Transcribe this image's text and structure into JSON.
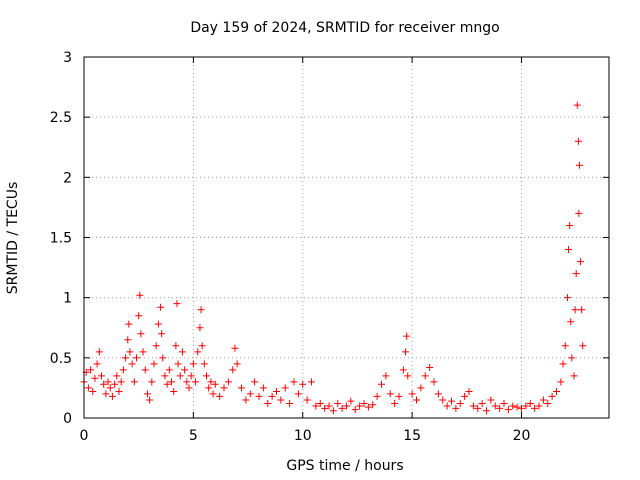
{
  "chart_data": {
    "type": "scatter",
    "title": "Day 159 of 2024, SRMTID for receiver mngo",
    "xlabel": "GPS time / hours",
    "ylabel": "SRMTID / TECUs",
    "xlim": [
      0,
      24
    ],
    "ylim": [
      0,
      3
    ],
    "grid": true,
    "marker": "+",
    "marker_color": "#ff0000",
    "x_ticks": [
      0,
      5,
      10,
      15,
      20
    ],
    "x_tick_labels": [
      "0",
      "5",
      "10",
      "15",
      "20"
    ],
    "y_ticks": [
      0,
      0.5,
      1,
      1.5,
      2,
      2.5,
      3
    ],
    "y_tick_labels": [
      "0",
      "0.5",
      "1",
      "1.5",
      "2",
      "2.5",
      "3"
    ],
    "series": [
      {
        "name": "SRMTID",
        "points": [
          [
            0.0,
            0.3
          ],
          [
            0.1,
            0.38
          ],
          [
            0.2,
            0.25
          ],
          [
            0.3,
            0.4
          ],
          [
            0.4,
            0.22
          ],
          [
            0.5,
            0.33
          ],
          [
            0.6,
            0.45
          ],
          [
            0.7,
            0.55
          ],
          [
            0.8,
            0.35
          ],
          [
            0.9,
            0.28
          ],
          [
            1.0,
            0.2
          ],
          [
            1.1,
            0.3
          ],
          [
            1.2,
            0.25
          ],
          [
            1.3,
            0.18
          ],
          [
            1.4,
            0.28
          ],
          [
            1.5,
            0.35
          ],
          [
            1.6,
            0.22
          ],
          [
            1.7,
            0.3
          ],
          [
            1.8,
            0.4
          ],
          [
            1.9,
            0.5
          ],
          [
            2.0,
            0.65
          ],
          [
            2.05,
            0.78
          ],
          [
            2.1,
            0.55
          ],
          [
            2.2,
            0.45
          ],
          [
            2.3,
            0.3
          ],
          [
            2.4,
            0.5
          ],
          [
            2.5,
            0.85
          ],
          [
            2.55,
            1.02
          ],
          [
            2.6,
            0.7
          ],
          [
            2.7,
            0.55
          ],
          [
            2.8,
            0.4
          ],
          [
            2.9,
            0.2
          ],
          [
            3.0,
            0.15
          ],
          [
            3.1,
            0.3
          ],
          [
            3.2,
            0.45
          ],
          [
            3.3,
            0.6
          ],
          [
            3.4,
            0.78
          ],
          [
            3.5,
            0.92
          ],
          [
            3.55,
            0.7
          ],
          [
            3.6,
            0.5
          ],
          [
            3.7,
            0.35
          ],
          [
            3.8,
            0.28
          ],
          [
            3.9,
            0.4
          ],
          [
            4.0,
            0.3
          ],
          [
            4.1,
            0.22
          ],
          [
            4.2,
            0.6
          ],
          [
            4.25,
            0.95
          ],
          [
            4.3,
            0.45
          ],
          [
            4.4,
            0.35
          ],
          [
            4.5,
            0.55
          ],
          [
            4.6,
            0.4
          ],
          [
            4.7,
            0.3
          ],
          [
            4.8,
            0.25
          ],
          [
            4.9,
            0.35
          ],
          [
            5.0,
            0.45
          ],
          [
            5.1,
            0.3
          ],
          [
            5.2,
            0.55
          ],
          [
            5.3,
            0.75
          ],
          [
            5.35,
            0.9
          ],
          [
            5.4,
            0.6
          ],
          [
            5.5,
            0.45
          ],
          [
            5.6,
            0.35
          ],
          [
            5.7,
            0.25
          ],
          [
            5.8,
            0.3
          ],
          [
            5.9,
            0.2
          ],
          [
            6.0,
            0.28
          ],
          [
            6.2,
            0.18
          ],
          [
            6.4,
            0.25
          ],
          [
            6.6,
            0.3
          ],
          [
            6.8,
            0.4
          ],
          [
            6.9,
            0.58
          ],
          [
            7.0,
            0.45
          ],
          [
            7.2,
            0.25
          ],
          [
            7.4,
            0.15
          ],
          [
            7.6,
            0.2
          ],
          [
            7.8,
            0.3
          ],
          [
            8.0,
            0.18
          ],
          [
            8.2,
            0.25
          ],
          [
            8.4,
            0.12
          ],
          [
            8.6,
            0.18
          ],
          [
            8.8,
            0.22
          ],
          [
            9.0,
            0.15
          ],
          [
            9.2,
            0.25
          ],
          [
            9.4,
            0.12
          ],
          [
            9.6,
            0.3
          ],
          [
            9.8,
            0.2
          ],
          [
            10.0,
            0.28
          ],
          [
            10.2,
            0.15
          ],
          [
            10.4,
            0.3
          ],
          [
            10.6,
            0.1
          ],
          [
            10.8,
            0.12
          ],
          [
            11.0,
            0.08
          ],
          [
            11.2,
            0.1
          ],
          [
            11.4,
            0.06
          ],
          [
            11.6,
            0.12
          ],
          [
            11.8,
            0.08
          ],
          [
            12.0,
            0.1
          ],
          [
            12.2,
            0.14
          ],
          [
            12.4,
            0.07
          ],
          [
            12.6,
            0.1
          ],
          [
            12.8,
            0.12
          ],
          [
            13.0,
            0.09
          ],
          [
            13.2,
            0.11
          ],
          [
            13.4,
            0.18
          ],
          [
            13.6,
            0.28
          ],
          [
            13.8,
            0.35
          ],
          [
            14.0,
            0.2
          ],
          [
            14.2,
            0.12
          ],
          [
            14.4,
            0.18
          ],
          [
            14.6,
            0.4
          ],
          [
            14.7,
            0.55
          ],
          [
            14.75,
            0.68
          ],
          [
            14.8,
            0.35
          ],
          [
            15.0,
            0.2
          ],
          [
            15.2,
            0.15
          ],
          [
            15.4,
            0.25
          ],
          [
            15.6,
            0.35
          ],
          [
            15.8,
            0.42
          ],
          [
            16.0,
            0.3
          ],
          [
            16.2,
            0.2
          ],
          [
            16.4,
            0.15
          ],
          [
            16.6,
            0.1
          ],
          [
            16.8,
            0.14
          ],
          [
            17.0,
            0.08
          ],
          [
            17.2,
            0.12
          ],
          [
            17.4,
            0.18
          ],
          [
            17.6,
            0.22
          ],
          [
            17.8,
            0.1
          ],
          [
            18.0,
            0.08
          ],
          [
            18.2,
            0.12
          ],
          [
            18.4,
            0.06
          ],
          [
            18.6,
            0.15
          ],
          [
            18.8,
            0.1
          ],
          [
            19.0,
            0.08
          ],
          [
            19.2,
            0.12
          ],
          [
            19.4,
            0.07
          ],
          [
            19.6,
            0.1
          ],
          [
            19.8,
            0.09
          ],
          [
            20.0,
            0.08
          ],
          [
            20.2,
            0.1
          ],
          [
            20.4,
            0.12
          ],
          [
            20.6,
            0.08
          ],
          [
            20.8,
            0.1
          ],
          [
            21.0,
            0.15
          ],
          [
            21.2,
            0.12
          ],
          [
            21.4,
            0.18
          ],
          [
            21.6,
            0.22
          ],
          [
            21.8,
            0.3
          ],
          [
            21.9,
            0.45
          ],
          [
            22.0,
            0.6
          ],
          [
            22.1,
            1.0
          ],
          [
            22.15,
            1.4
          ],
          [
            22.2,
            1.6
          ],
          [
            22.25,
            0.8
          ],
          [
            22.3,
            0.5
          ],
          [
            22.4,
            0.35
          ],
          [
            22.45,
            0.9
          ],
          [
            22.5,
            1.2
          ],
          [
            22.55,
            2.6
          ],
          [
            22.6,
            2.3
          ],
          [
            22.62,
            1.7
          ],
          [
            22.65,
            2.1
          ],
          [
            22.7,
            1.3
          ],
          [
            22.75,
            0.9
          ],
          [
            22.8,
            0.6
          ]
        ]
      }
    ]
  }
}
